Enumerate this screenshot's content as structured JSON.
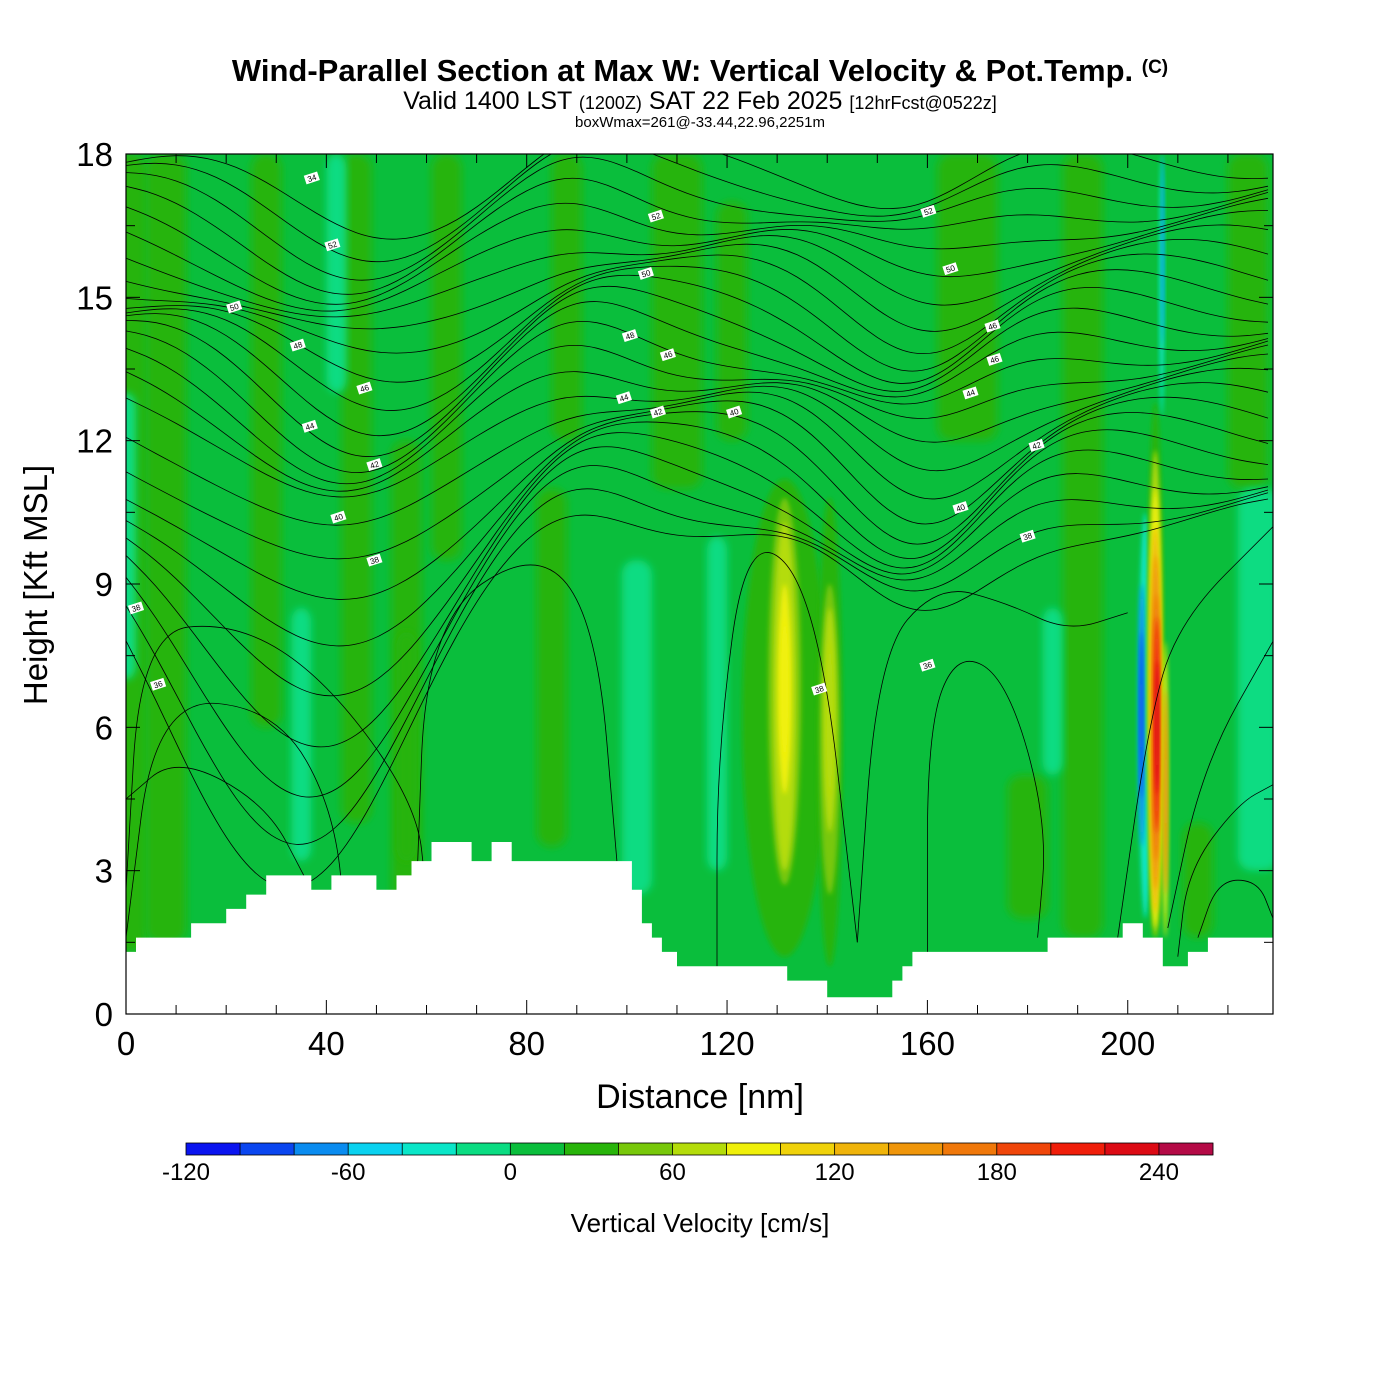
{
  "chart_data": {
    "type": "heatmap",
    "title": "Wind-Parallel Section at Max W: Vertical Velocity & Pot.Temp.",
    "title_mark": "(C)",
    "subtitle": {
      "valid": "Valid 1400 LST",
      "utc": "(1200Z)",
      "date": "SAT 22 Feb 2025",
      "forecast": "[12hrFcst@0522z]"
    },
    "box_wmax": "boxWmax=261@-33.44,22.96,2251m",
    "xlabel": "Distance [nm]",
    "ylabel": "Height [Kft MSL]",
    "xlim": [
      0,
      229
    ],
    "ylim": [
      0,
      18
    ],
    "xticks": [
      0,
      40,
      80,
      120,
      160,
      200
    ],
    "yticks": [
      0,
      3,
      6,
      9,
      12,
      15,
      18
    ],
    "colorbar": {
      "label": "Vertical Velocity [cm/s]",
      "range": [
        -120,
        260
      ],
      "step": 20,
      "tick_labels": [
        -120,
        -60,
        0,
        60,
        120,
        180,
        240
      ],
      "colors": [
        "#0a14f0",
        "#0a46f0",
        "#0a8cf0",
        "#0ad2f0",
        "#0ae6c8",
        "#0adc82",
        "#0abe3c",
        "#28b40a",
        "#78c80a",
        "#b4dc0a",
        "#f0f00a",
        "#f0d20a",
        "#f0b40a",
        "#f0960a",
        "#f0780a",
        "#f0460a",
        "#f01e0a",
        "#dc0a14",
        "#b40a46"
      ]
    },
    "theta_labels": [
      {
        "v": 34,
        "x": 37.1,
        "y": 17.5
      },
      {
        "v": 52,
        "x": 41.2,
        "y": 16.1
      },
      {
        "v": 50,
        "x": 21.6,
        "y": 14.8
      },
      {
        "v": 48,
        "x": 34.3,
        "y": 14.0
      },
      {
        "v": 46,
        "x": 47.6,
        "y": 13.1
      },
      {
        "v": 44,
        "x": 36.7,
        "y": 12.3
      },
      {
        "v": 42,
        "x": 49.6,
        "y": 11.5
      },
      {
        "v": 40,
        "x": 42.4,
        "y": 10.4
      },
      {
        "v": 38,
        "x": 49.6,
        "y": 9.5
      },
      {
        "v": 38,
        "x": 2.0,
        "y": 8.5
      },
      {
        "v": 36,
        "x": 6.4,
        "y": 6.9
      },
      {
        "v": 52,
        "x": 105.8,
        "y": 16.7
      },
      {
        "v": 50,
        "x": 103.8,
        "y": 15.5
      },
      {
        "v": 48,
        "x": 100.6,
        "y": 14.2
      },
      {
        "v": 46,
        "x": 108.2,
        "y": 13.8
      },
      {
        "v": 44,
        "x": 99.4,
        "y": 12.9
      },
      {
        "v": 42,
        "x": 106.2,
        "y": 12.6
      },
      {
        "v": 40,
        "x": 121.4,
        "y": 12.6
      },
      {
        "v": 52,
        "x": 160.2,
        "y": 16.8
      },
      {
        "v": 50,
        "x": 164.6,
        "y": 15.6
      },
      {
        "v": 46,
        "x": 173.0,
        "y": 14.4
      },
      {
        "v": 46,
        "x": 173.4,
        "y": 13.7
      },
      {
        "v": 44,
        "x": 168.6,
        "y": 13.0
      },
      {
        "v": 42,
        "x": 181.8,
        "y": 11.9
      },
      {
        "v": 40,
        "x": 166.6,
        "y": 10.6
      },
      {
        "v": 38,
        "x": 180.0,
        "y": 10.0
      },
      {
        "v": 38,
        "x": 138.4,
        "y": 6.8
      },
      {
        "v": 36,
        "x": 160.0,
        "y": 7.3
      }
    ],
    "terrain_kft": [
      [
        0,
        1.3
      ],
      [
        2,
        1.3
      ],
      [
        2,
        1.6
      ],
      [
        13,
        1.6
      ],
      [
        13,
        1.9
      ],
      [
        20,
        1.9
      ],
      [
        20,
        2.2
      ],
      [
        24,
        2.2
      ],
      [
        24,
        2.5
      ],
      [
        28,
        2.5
      ],
      [
        28,
        2.9
      ],
      [
        37,
        2.9
      ],
      [
        37,
        2.6
      ],
      [
        41,
        2.6
      ],
      [
        41,
        2.9
      ],
      [
        50,
        2.9
      ],
      [
        50,
        2.6
      ],
      [
        54,
        2.6
      ],
      [
        54,
        2.9
      ],
      [
        57,
        2.9
      ],
      [
        57,
        3.2
      ],
      [
        61,
        3.2
      ],
      [
        61,
        3.6
      ],
      [
        69,
        3.6
      ],
      [
        69,
        3.2
      ],
      [
        73,
        3.2
      ],
      [
        73,
        3.6
      ],
      [
        77,
        3.6
      ],
      [
        77,
        3.2
      ],
      [
        101,
        3.2
      ],
      [
        101,
        2.6
      ],
      [
        103,
        2.6
      ],
      [
        103,
        1.9
      ],
      [
        105,
        1.9
      ],
      [
        105,
        1.6
      ],
      [
        107,
        1.6
      ],
      [
        107,
        1.3
      ],
      [
        110,
        1.3
      ],
      [
        110,
        1.0
      ],
      [
        132,
        1.0
      ],
      [
        132,
        0.7
      ],
      [
        140,
        0.7
      ],
      [
        140,
        0.35
      ],
      [
        153,
        0.35
      ],
      [
        153,
        0.7
      ],
      [
        155,
        0.7
      ],
      [
        155,
        1.0
      ],
      [
        157,
        1.0
      ],
      [
        157,
        1.3
      ],
      [
        184,
        1.3
      ],
      [
        184,
        1.6
      ],
      [
        199,
        1.6
      ],
      [
        199,
        1.9
      ],
      [
        203,
        1.9
      ],
      [
        203,
        1.6
      ],
      [
        207,
        1.6
      ],
      [
        207,
        1.0
      ],
      [
        212,
        1.0
      ],
      [
        212,
        1.3
      ],
      [
        216,
        1.3
      ],
      [
        216,
        1.6
      ],
      [
        229,
        1.6
      ]
    ]
  }
}
